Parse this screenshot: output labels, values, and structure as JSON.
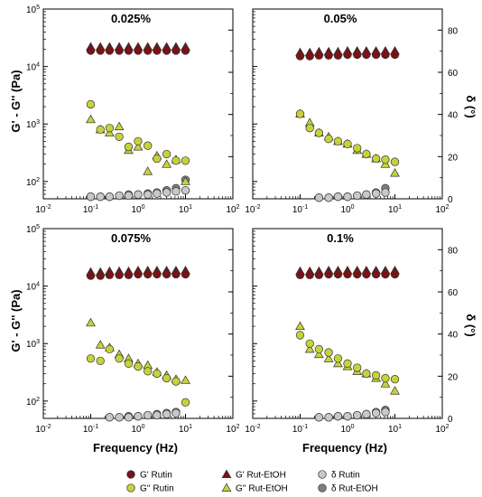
{
  "figure": {
    "xlabel": "Frequency (Hz)",
    "ylabel_left": "G' - G'' (Pa)",
    "ylabel_right": "δ (°)"
  },
  "colors": {
    "gprime": "#7b1214",
    "gdouble": "#c7d23b",
    "delta_rutin": "#c8c8c8",
    "delta_ruteth": "#7f7f7f",
    "outline": "#333333"
  },
  "legend": [
    {
      "label": "G' Rutin",
      "marker": "circle",
      "color": "#7b1214"
    },
    {
      "label": "G' Rut-EtOH",
      "marker": "triangle",
      "color": "#7b1214"
    },
    {
      "label": "δ Rutin",
      "marker": "circle",
      "color": "#c8c8c8"
    },
    {
      "label": "G'' Rutin",
      "marker": "circle",
      "color": "#c7d23b"
    },
    {
      "label": "G'' Rut-EtOH",
      "marker": "triangle",
      "color": "#c7d23b"
    },
    {
      "label": "δ Rut-EtOH",
      "marker": "circle",
      "color": "#7f7f7f"
    }
  ],
  "chart_data": [
    {
      "type": "scatter",
      "title": "0.025%",
      "xscale": "log",
      "xlim": [
        0.01,
        100
      ],
      "xticks": [
        "10-2",
        "10-1",
        "100",
        "101",
        "102"
      ],
      "yscale_left": "log",
      "ylim_left": [
        50,
        100000
      ],
      "yticks_left": [
        "102",
        "103",
        "104",
        "105"
      ],
      "ylim_right": [
        0,
        90
      ],
      "yticks_right": [
        "0",
        "20",
        "40",
        "60",
        "80"
      ],
      "series": [
        {
          "name": "G' Rutin",
          "axis": "left",
          "marker": "circle",
          "x": [
            0.1,
            0.16,
            0.25,
            0.4,
            0.63,
            1,
            1.6,
            2.5,
            4,
            6.3,
            10
          ],
          "y": [
            20000,
            20000,
            20000,
            20000,
            20000,
            20000,
            20000,
            20000,
            20000,
            20000,
            20000
          ]
        },
        {
          "name": "G' Rut-EtOH",
          "axis": "left",
          "marker": "triangle",
          "x": [
            0.1,
            0.16,
            0.25,
            0.4,
            0.63,
            1,
            1.6,
            2.5,
            4,
            6.3,
            10
          ],
          "y": [
            20000,
            20000,
            20000,
            20000,
            20000,
            20000,
            20000,
            20000,
            20000,
            20000,
            20000
          ]
        },
        {
          "name": "G'' Rutin",
          "axis": "left",
          "marker": "circle",
          "x": [
            0.1,
            0.16,
            0.25,
            0.4,
            0.63,
            1,
            1.6,
            2.5,
            4,
            6.3,
            10
          ],
          "y": [
            2200,
            800,
            850,
            600,
            400,
            500,
            420,
            250,
            300,
            230,
            230
          ]
        },
        {
          "name": "G'' Rut-EtOH",
          "axis": "left",
          "marker": "triangle",
          "x": [
            0.1,
            0.16,
            0.25,
            0.4,
            0.63,
            1,
            1.6,
            2.5,
            4,
            6.3,
            10
          ],
          "y": [
            1200,
            800,
            700,
            900,
            350,
            400,
            150,
            280,
            200,
            240,
            100
          ]
        },
        {
          "name": "δ Rutin",
          "axis": "right",
          "marker": "circle",
          "x": [
            0.1,
            0.16,
            0.25,
            0.4,
            0.63,
            1,
            1.6,
            2.5,
            4,
            6.3,
            10
          ],
          "y": [
            1,
            1,
            1,
            1.5,
            1.5,
            2,
            2,
            2.5,
            3,
            3.5,
            4
          ]
        },
        {
          "name": "δ Rut-EtOH",
          "axis": "right",
          "marker": "circle",
          "x": [
            0.1,
            0.16,
            0.25,
            0.4,
            0.63,
            1,
            1.6,
            2.5,
            4,
            6.3,
            10
          ],
          "y": [
            1,
            1,
            1,
            1.5,
            2,
            2,
            2.5,
            3,
            4,
            5,
            9
          ]
        }
      ]
    },
    {
      "type": "scatter",
      "title": "0.05%",
      "xscale": "log",
      "xlim": [
        0.01,
        100
      ],
      "xticks": [
        "10-2",
        "10-1",
        "100",
        "101",
        "102"
      ],
      "yscale_left": "log",
      "ylim_left": [
        50,
        100000
      ],
      "yticks_left": [
        "102",
        "103",
        "104",
        "105"
      ],
      "ylim_right": [
        0,
        90
      ],
      "yticks_right": [
        "0",
        "20",
        "40",
        "60",
        "80"
      ],
      "series": [
        {
          "name": "G' Rutin",
          "axis": "left",
          "marker": "circle",
          "x": [
            0.1,
            0.16,
            0.25,
            0.4,
            0.63,
            1,
            1.6,
            2.5,
            4,
            6.3,
            10
          ],
          "y": [
            16000,
            16000,
            16500,
            16500,
            16500,
            17000,
            17000,
            17000,
            17000,
            17000,
            17000
          ]
        },
        {
          "name": "G' Rut-EtOH",
          "axis": "left",
          "marker": "triangle",
          "x": [
            0.1,
            0.16,
            0.25,
            0.4,
            0.63,
            1,
            1.6,
            2.5,
            4,
            6.3,
            10
          ],
          "y": [
            16000,
            16000,
            16500,
            16500,
            16500,
            17000,
            17000,
            17000,
            17000,
            17000,
            17000
          ]
        },
        {
          "name": "G'' Rutin",
          "axis": "left",
          "marker": "circle",
          "x": [
            0.1,
            0.16,
            0.25,
            0.4,
            0.63,
            1,
            1.6,
            2.5,
            4,
            6.3,
            10
          ],
          "y": [
            1500,
            850,
            700,
            550,
            500,
            450,
            380,
            300,
            250,
            240,
            220
          ]
        },
        {
          "name": "G'' Rut-EtOH",
          "axis": "left",
          "marker": "triangle",
          "x": [
            0.1,
            0.16,
            0.25,
            0.4,
            0.63,
            1,
            1.6,
            2.5,
            4,
            6.3,
            10
          ],
          "y": [
            1500,
            1050,
            700,
            600,
            500,
            450,
            350,
            300,
            250,
            200,
            140
          ]
        },
        {
          "name": "δ Rutin",
          "axis": "right",
          "marker": "circle",
          "x": [
            0.25,
            0.4,
            0.63,
            1,
            1.6,
            2.5,
            4,
            6.3
          ],
          "y": [
            0.5,
            0.5,
            1,
            1,
            1.5,
            2,
            2.5,
            3
          ]
        },
        {
          "name": "δ Rut-EtOH",
          "axis": "right",
          "marker": "circle",
          "x": [
            0.25,
            0.4,
            0.63,
            1,
            1.6,
            2.5,
            4,
            6.3
          ],
          "y": [
            0.5,
            0.5,
            1,
            1,
            1.5,
            2,
            3,
            5
          ]
        }
      ]
    },
    {
      "type": "scatter",
      "title": "0.075%",
      "xscale": "log",
      "xlim": [
        0.01,
        100
      ],
      "xticks": [
        "10-2",
        "10-1",
        "100",
        "101",
        "102"
      ],
      "yscale_left": "log",
      "ylim_left": [
        50,
        100000
      ],
      "yticks_left": [
        "102",
        "103",
        "104",
        "105"
      ],
      "ylim_right": [
        0,
        90
      ],
      "yticks_right": [
        "0",
        "20",
        "40",
        "60",
        "80"
      ],
      "series": [
        {
          "name": "G' Rutin",
          "axis": "left",
          "marker": "circle",
          "x": [
            0.1,
            0.16,
            0.25,
            0.4,
            0.63,
            1,
            1.6,
            2.5,
            4,
            6.3,
            10
          ],
          "y": [
            16000,
            16000,
            16500,
            16500,
            16500,
            17000,
            17000,
            17000,
            17000,
            17000,
            17000
          ]
        },
        {
          "name": "G' Rut-EtOH",
          "axis": "left",
          "marker": "triangle",
          "x": [
            0.1,
            0.16,
            0.25,
            0.4,
            0.63,
            1,
            1.6,
            2.5,
            4,
            6.3,
            10
          ],
          "y": [
            16000,
            16000,
            16500,
            16500,
            16500,
            17000,
            17000,
            17000,
            17000,
            17000,
            17000
          ]
        },
        {
          "name": "G'' Rutin",
          "axis": "left",
          "marker": "circle",
          "x": [
            0.1,
            0.16,
            0.25,
            0.4,
            0.63,
            1,
            1.6,
            2.5,
            4,
            6.3,
            10
          ],
          "y": [
            550,
            500,
            800,
            550,
            450,
            400,
            330,
            300,
            250,
            220,
            95
          ]
        },
        {
          "name": "G'' Rut-EtOH",
          "axis": "left",
          "marker": "triangle",
          "x": [
            0.1,
            0.16,
            0.25,
            0.4,
            0.63,
            1,
            1.6,
            2.5,
            4,
            6.3,
            10
          ],
          "y": [
            2300,
            950,
            850,
            650,
            550,
            450,
            420,
            320,
            280,
            240,
            230
          ]
        },
        {
          "name": "δ Rutin",
          "axis": "right",
          "marker": "circle",
          "x": [
            0.25,
            0.4,
            0.63,
            1,
            1.6,
            2.5,
            4,
            6.3
          ],
          "y": [
            0.5,
            0.5,
            0.5,
            1,
            1.5,
            1.5,
            2,
            2.5
          ]
        },
        {
          "name": "δ Rut-EtOH",
          "axis": "right",
          "marker": "circle",
          "x": [
            0.25,
            0.4,
            0.63,
            1,
            1.6,
            2.5,
            4,
            6.3
          ],
          "y": [
            0.5,
            0.5,
            1,
            1,
            1.5,
            2,
            2.5,
            3
          ]
        }
      ]
    },
    {
      "type": "scatter",
      "title": "0.1%",
      "xscale": "log",
      "xlim": [
        0.01,
        100
      ],
      "xticks": [
        "10-2",
        "10-1",
        "100",
        "101",
        "102"
      ],
      "yscale_left": "log",
      "ylim_left": [
        50,
        100000
      ],
      "yticks_left": [
        "102",
        "103",
        "104",
        "105"
      ],
      "ylim_right": [
        0,
        90
      ],
      "yticks_right": [
        "0",
        "20",
        "40",
        "60",
        "80"
      ],
      "series": [
        {
          "name": "G' Rutin",
          "axis": "left",
          "marker": "circle",
          "x": [
            0.1,
            0.16,
            0.25,
            0.4,
            0.63,
            1,
            1.6,
            2.5,
            4,
            6.3,
            10
          ],
          "y": [
            16500,
            16500,
            16500,
            17000,
            17000,
            17000,
            17000,
            17000,
            17000,
            17000,
            17000
          ]
        },
        {
          "name": "G' Rut-EtOH",
          "axis": "left",
          "marker": "triangle",
          "x": [
            0.1,
            0.16,
            0.25,
            0.4,
            0.63,
            1,
            1.6,
            2.5,
            4,
            6.3,
            10
          ],
          "y": [
            16500,
            16500,
            16500,
            17000,
            17000,
            17000,
            17000,
            17000,
            17000,
            17000,
            17000
          ]
        },
        {
          "name": "G'' Rutin",
          "axis": "left",
          "marker": "circle",
          "x": [
            0.1,
            0.16,
            0.25,
            0.4,
            0.63,
            1,
            1.6,
            2.5,
            4,
            6.3,
            10
          ],
          "y": [
            1400,
            1000,
            800,
            700,
            550,
            450,
            380,
            300,
            280,
            250,
            240
          ]
        },
        {
          "name": "G'' Rut-EtOH",
          "axis": "left",
          "marker": "triangle",
          "x": [
            0.1,
            0.16,
            0.25,
            0.4,
            0.63,
            1,
            1.6,
            2.5,
            4,
            6.3,
            10
          ],
          "y": [
            2000,
            800,
            650,
            550,
            450,
            400,
            330,
            300,
            250,
            200,
            150
          ]
        },
        {
          "name": "δ Rutin",
          "axis": "right",
          "marker": "circle",
          "x": [
            0.25,
            0.4,
            0.63,
            1,
            1.6,
            2.5,
            4,
            6.3
          ],
          "y": [
            0.5,
            0.5,
            1,
            1,
            1.5,
            2,
            2.5,
            3
          ]
        },
        {
          "name": "δ Rut-EtOH",
          "axis": "right",
          "marker": "circle",
          "x": [
            0.25,
            0.4,
            0.63,
            1,
            1.6,
            2.5,
            4,
            6.3
          ],
          "y": [
            0.5,
            0.5,
            1,
            1,
            1.5,
            2,
            3,
            4
          ]
        }
      ]
    }
  ]
}
